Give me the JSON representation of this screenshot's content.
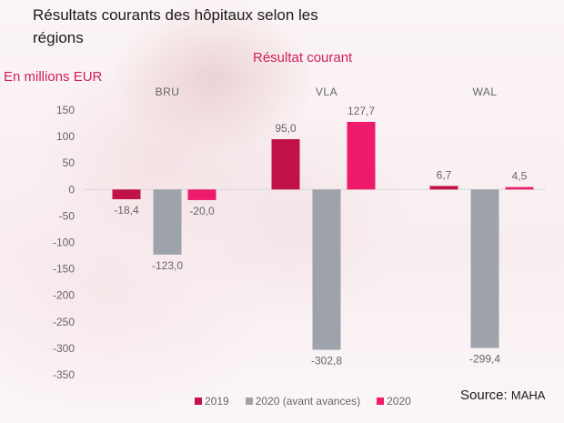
{
  "title": "Résultats courants des hôpitaux selon les régions",
  "source": {
    "label": "Source:",
    "name": "MAHA"
  },
  "colors": {
    "s2019": "#c2124a",
    "s2020a": "#9ea2aa",
    "s2020": "#ee1a6b",
    "text": "#666666"
  },
  "chart_data": {
    "type": "bar",
    "title": "Résultat courant",
    "ylabel": "En millions EUR",
    "xlabel": "",
    "categories": [
      "BRU",
      "VLA",
      "WAL"
    ],
    "series": [
      {
        "name": "2019",
        "values": [
          -18.4,
          95.0,
          6.7
        ],
        "labels": [
          "-18,4",
          "95,0",
          "6,7"
        ]
      },
      {
        "name": "2020 (avant avances)",
        "values": [
          -123.0,
          -302.8,
          -299.4
        ],
        "labels": [
          "-123,0",
          "-302,8",
          "-299,4"
        ]
      },
      {
        "name": "2020",
        "values": [
          -20.0,
          127.7,
          4.5
        ],
        "labels": [
          "-20,0",
          "127,7",
          "4,5"
        ]
      }
    ],
    "ylim": [
      -350,
      150
    ],
    "yticks": [
      150,
      100,
      50,
      0,
      -50,
      -100,
      -150,
      -200,
      -250,
      -300,
      -350
    ],
    "grid": false,
    "legend": "bottom"
  }
}
